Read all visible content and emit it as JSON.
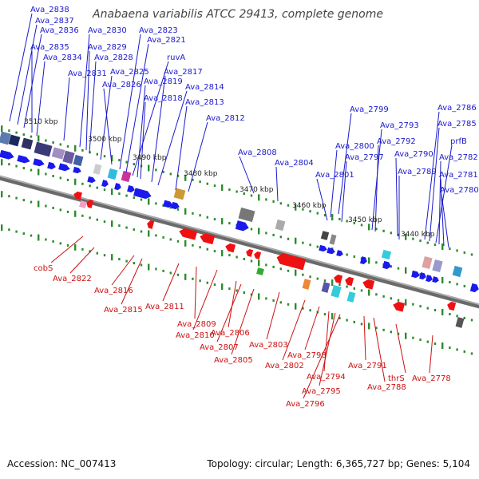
{
  "title": "Anabaena variabilis ATCC 29413, complete genome",
  "footer": {
    "accession": "Accession: NC_007413",
    "summary": "Topology: circular; Length: 6,365,727 bp; Genes: 5,104"
  },
  "colors": {
    "forward_strand": "#1a1aee",
    "reverse_strand": "#ee1111",
    "forward_label": "#1a1acc",
    "reverse_label": "#cc1111",
    "backbone": "#888888",
    "tick_green": "#2e8b2e"
  },
  "kbp_markers": [
    "3510 kbp",
    "3500 kbp",
    "3490 kbp",
    "3480 kbp",
    "3470 kbp",
    "3460 kbp",
    "3450 kbp",
    "3440 kbp"
  ],
  "forward_labels": [
    "Ava_2838",
    "Ava_2837",
    "Ava_2836",
    "Ava_2835",
    "Ava_2834",
    "Ava_2831",
    "Ava_2830",
    "Ava_2829",
    "Ava_2828",
    "Ava_2825",
    "Ava_2826",
    "Ava_2823",
    "Ava_2821",
    "ruvA",
    "Ava_2819",
    "Ava_2818",
    "Ava_2817",
    "Ava_2814",
    "Ava_2813",
    "Ava_2812",
    "Ava_2808",
    "Ava_2804",
    "Ava_2799",
    "Ava_2800",
    "Ava_2801",
    "Ava_2797",
    "Ava_2793",
    "Ava_2792",
    "Ava_2790",
    "Ava_2789",
    "Ava_2786",
    "Ava_2785",
    "prfB",
    "Ava_2782",
    "Ava_2781",
    "Ava_2780"
  ],
  "reverse_labels": [
    "cobS",
    "Ava_2822",
    "Ava_2816",
    "Ava_2815",
    "Ava_2811",
    "Ava_2809",
    "Ava_2810",
    "Ava_2806",
    "Ava_2807",
    "Ava_2805",
    "Ava_2803",
    "Ava_2802",
    "Ava_2798",
    "Ava_2794",
    "Ava_2795",
    "Ava_2796",
    "Ava_2791",
    "Ava_2788",
    "thrS",
    "Ava_2778"
  ]
}
